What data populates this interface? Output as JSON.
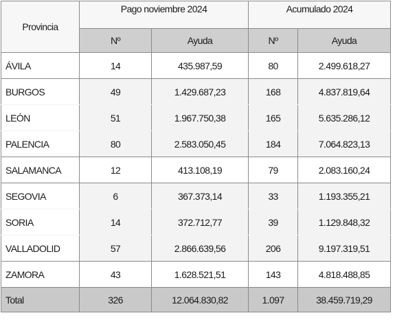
{
  "header": {
    "provincia": "Provincia",
    "group1": "Pago noviembre 2024",
    "group2": "Acumulado 2024",
    "n1": "Nº",
    "ayuda1": "Ayuda",
    "n2": "Nº",
    "ayuda2": "Ayuda"
  },
  "rows": [
    {
      "provincia": "ÁVILA",
      "n1": "14",
      "ayuda1": "435.987,59",
      "n2": "80",
      "ayuda2": "2.499.618,27"
    },
    {
      "provincia": "BURGOS",
      "n1": "49",
      "ayuda1": "1.429.687,23",
      "n2": "168",
      "ayuda2": "4.837.819,64"
    },
    {
      "provincia": "LEÓN",
      "n1": "51",
      "ayuda1": "1.967.750,38",
      "n2": "165",
      "ayuda2": "5.635.286,12"
    },
    {
      "provincia": "PALENCIA",
      "n1": "80",
      "ayuda1": "2.583.050,45",
      "n2": "184",
      "ayuda2": "7.064.823,13"
    },
    {
      "provincia": "SALAMANCA",
      "n1": "12",
      "ayuda1": "413.108,19",
      "n2": "79",
      "ayuda2": "2.083.160,24"
    },
    {
      "provincia": "SEGOVIA",
      "n1": "6",
      "ayuda1": "367.373,14",
      "n2": "33",
      "ayuda2": "1.193.355,21"
    },
    {
      "provincia": "SORIA",
      "n1": "14",
      "ayuda1": "372.712,77",
      "n2": "39",
      "ayuda2": "1.129.848,32"
    },
    {
      "provincia": "VALLADOLID",
      "n1": "57",
      "ayuda1": "2.866.639,56",
      "n2": "206",
      "ayuda2": "9.197.319,51"
    },
    {
      "provincia": "ZAMORA",
      "n1": "43",
      "ayuda1": "1.628.521,51",
      "n2": "143",
      "ayuda2": "4.818.488,85"
    }
  ],
  "total": {
    "label": "Total",
    "n1": "326",
    "ayuda1": "12.064.830,82",
    "n2": "1.097",
    "ayuda2": "38.459.719,29"
  }
}
